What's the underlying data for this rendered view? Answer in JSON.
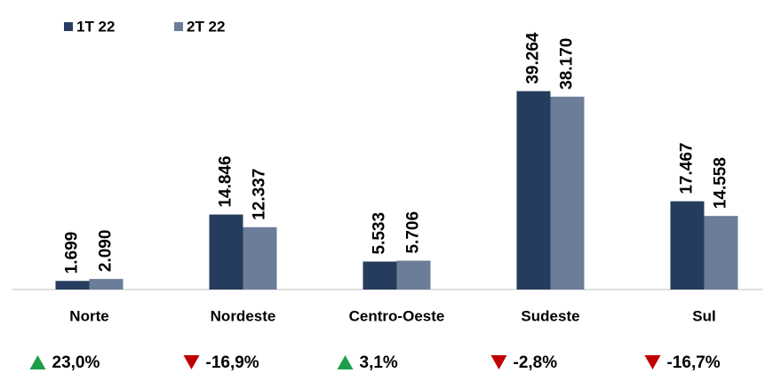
{
  "chart_data": {
    "type": "bar",
    "categories": [
      "Norte",
      "Nordeste",
      "Centro-Oeste",
      "Sudeste",
      "Sul"
    ],
    "series": [
      {
        "name": "1T 22",
        "color": "#253c5e",
        "values": [
          1699,
          14846,
          5533,
          39264,
          17467
        ],
        "value_labels": [
          "1.699",
          "14.846",
          "5.533",
          "39.264",
          "17.467"
        ]
      },
      {
        "name": "2T 22",
        "color": "#6b7d98",
        "values": [
          2090,
          12337,
          5706,
          38170,
          14558
        ],
        "value_labels": [
          "2.090",
          "12.337",
          "5.706",
          "38.170",
          "14.558"
        ]
      }
    ],
    "changes": [
      23.0,
      -16.9,
      3.1,
      -2.8,
      -16.7
    ],
    "change_labels": [
      "23,0%",
      "-16,9%",
      "3,1%",
      "-2,8%",
      "-16,7%"
    ],
    "up_color": "#1e9e4a",
    "down_color": "#c00000",
    "ylim": [
      0,
      45000
    ]
  }
}
